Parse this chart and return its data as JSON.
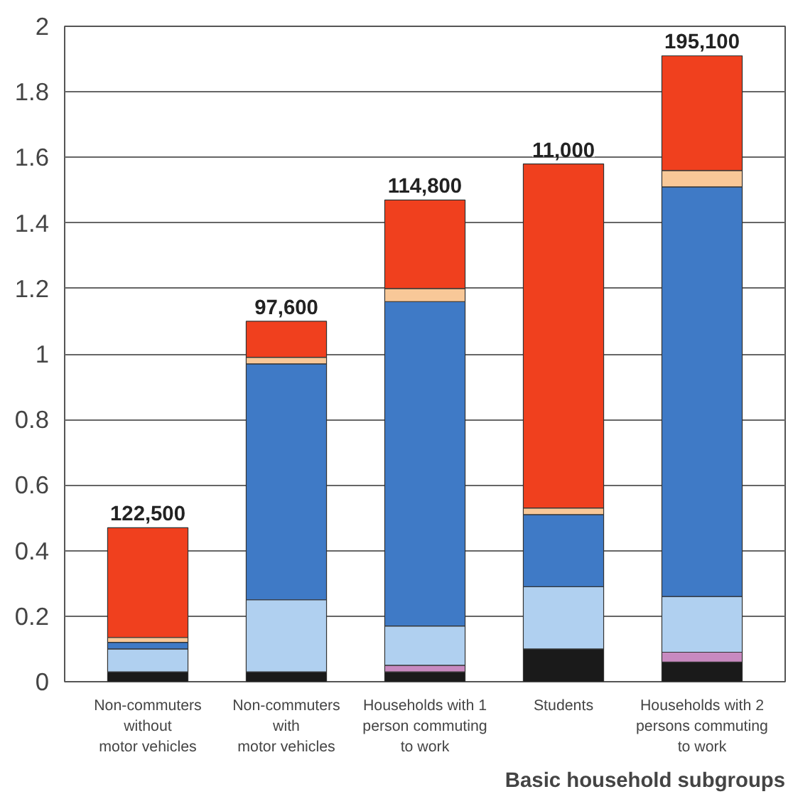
{
  "chart_data": {
    "type": "bar",
    "stacked": true,
    "xlabel": "Basic household subgroups",
    "categories": [
      "Non-commuters\nwithout\nmotor vehicles",
      "Non-commuters\nwith\nmotor vehicles",
      "Households with 1\nperson commuting\nto work",
      "Students",
      "Households with 2\npersons commuting\nto work"
    ],
    "series": [
      {
        "color": "#1a1a1a",
        "values": [
          0.03,
          0.03,
          0.03,
          0.1,
          0.06
        ]
      },
      {
        "color": "#c88ac0",
        "values": [
          0,
          0,
          0.02,
          0,
          0.03
        ]
      },
      {
        "color": "#b0d0f0",
        "values": [
          0.07,
          0.22,
          0.12,
          0.19,
          0.17
        ]
      },
      {
        "color": "#3f7ac6",
        "values": [
          0.02,
          0.72,
          0.99,
          0.22,
          1.25
        ]
      },
      {
        "color": "#f8c898",
        "values": [
          0.015,
          0.02,
          0.04,
          0.02,
          0.05
        ]
      },
      {
        "color": "#f0401e",
        "values": [
          0.335,
          0.11,
          0.27,
          1.05,
          0.35
        ]
      }
    ],
    "annotations": [
      {
        "text": "122,500",
        "x": "Non-commuters\nwithout\nmotor vehicles",
        "y": 0.47
      },
      {
        "text": "97,600",
        "x": "Non-commuters\nwith\nmotor vehicles",
        "y": 1.1
      },
      {
        "text": "114,800",
        "x": "Households with 1\nperson commuting\nto work",
        "y": 1.47
      },
      {
        "text": "11,000",
        "x": "Students",
        "y": 1.58
      },
      {
        "text": "195,100",
        "x": "Households with 2\npersons commuting\nto work",
        "y": 1.91
      }
    ],
    "ylim": [
      0,
      2
    ],
    "yticks": [
      0,
      0.2,
      0.4,
      0.6,
      0.8,
      1,
      1.2,
      1.4,
      1.6,
      1.8,
      2
    ],
    "grid": "y"
  }
}
